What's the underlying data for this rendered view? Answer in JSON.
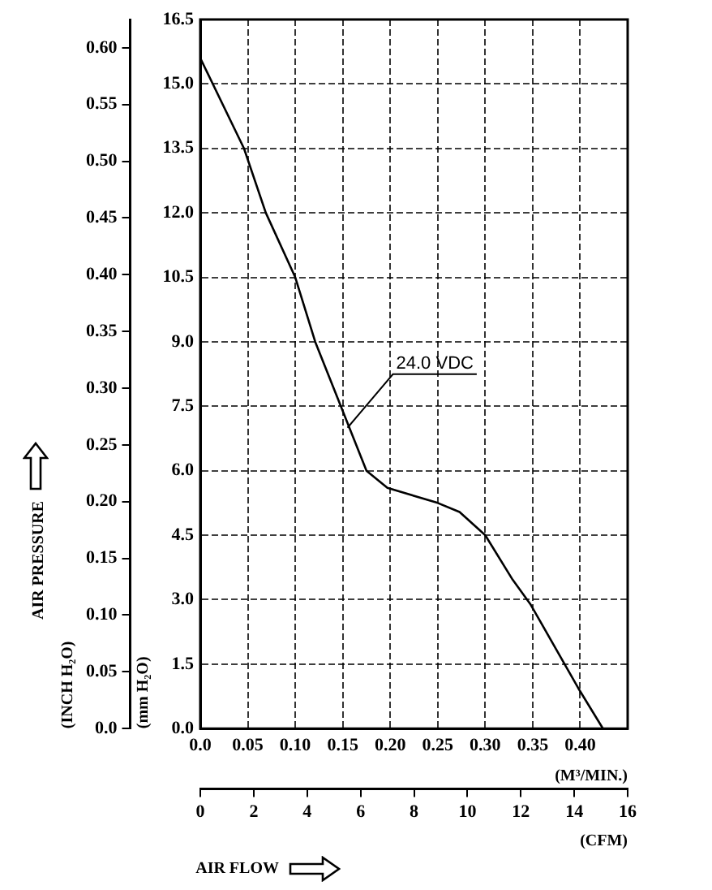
{
  "chart_data": {
    "type": "line",
    "xlabel": "(M³/MIN.)",
    "x2label": "(CFM)",
    "ylabel": "(mm H₂O)",
    "y2label": "(INCH H₂O)",
    "xlim": [
      0,
      0.45
    ],
    "xticks": [
      {
        "value": 0,
        "label": "0.0"
      },
      0.05,
      {
        "value": 0.1,
        "label": "0.10"
      },
      0.15,
      {
        "value": 0.2,
        "label": "0.20"
      },
      0.25,
      {
        "value": 0.3,
        "label": "0.30"
      },
      0.35,
      {
        "value": 0.4,
        "label": "0.40"
      }
    ],
    "x2lim": [
      0,
      16
    ],
    "x2ticks": [
      0,
      2,
      4,
      6,
      8,
      10,
      12,
      14,
      16
    ],
    "ylim": [
      0,
      16.5
    ],
    "yticks": [
      {
        "value": 0,
        "label": "0.0"
      },
      1.5,
      {
        "value": 3,
        "label": "3.0"
      },
      4.5,
      {
        "value": 6,
        "label": "6.0"
      },
      7.5,
      {
        "value": 9,
        "label": "9.0"
      },
      10.5,
      {
        "value": 12,
        "label": "12.0"
      },
      13.5,
      {
        "value": 15,
        "label": "15.0"
      },
      16.5
    ],
    "y2lim": [
      0,
      0.625
    ],
    "y2ticks": [
      {
        "value": 0,
        "label": "0.0"
      },
      0.05,
      {
        "value": 0.1,
        "label": "0.10"
      },
      0.15,
      {
        "value": 0.2,
        "label": "0.20"
      },
      0.25,
      {
        "value": 0.3,
        "label": "0.30"
      },
      0.35,
      {
        "value": 0.4,
        "label": "0.40"
      },
      0.45,
      {
        "value": 0.5,
        "label": "0.50"
      },
      0.55,
      {
        "value": 0.6,
        "label": "0.60"
      }
    ],
    "grid": true,
    "legend": false,
    "marker": "none",
    "line_style": "solid",
    "series": [
      {
        "color": "#000000",
        "x": [
          0,
          0.046,
          0.069,
          0.1,
          0.121,
          0.148,
          0.175,
          0.197,
          0.25,
          0.273,
          0.3,
          0.329,
          0.348,
          0.398,
          0.424
        ],
        "values": [
          15.6,
          13.5,
          12.0,
          10.5,
          9.0,
          7.5,
          6.0,
          5.6,
          5.25,
          5.04,
          4.5,
          3.46,
          2.88,
          0.94,
          0
        ]
      }
    ],
    "annotations": [
      "AIR PRESSURE",
      "AIR FLOW",
      {
        "text": "24.0 VDC",
        "x": 0.155,
        "y": 7.0
      }
    ]
  }
}
